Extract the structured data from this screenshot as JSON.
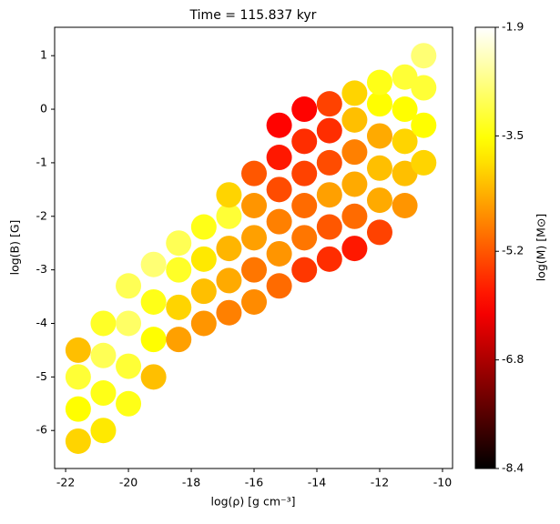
{
  "chart_data": {
    "type": "scatter",
    "title": "Time = 115.837 kyr",
    "x_label": "log(ρ) [g cm⁻³]",
    "y_label": "log(B) [G]",
    "colorbar_label": "log(M) [M⊙]",
    "colormap": "hot",
    "xlim": [
      -22.35,
      -9.68
    ],
    "xticks": [
      -22,
      -20,
      -18,
      -16,
      -14,
      -12,
      -10
    ],
    "ylim": [
      -6.71,
      1.53
    ],
    "yticks": [
      1,
      0,
      -1,
      -2,
      -3,
      -4,
      -5,
      -6
    ],
    "clim": [
      -8.4,
      -1.9
    ],
    "cticks": [
      -1.9,
      -3.5,
      -5.2,
      -6.8,
      -8.4
    ],
    "x": [
      -21.6,
      -21.6,
      -21.6,
      -21.6,
      -20.8,
      -20.8,
      -20.8,
      -20.8,
      -20.0,
      -20.0,
      -20.0,
      -20.0,
      -19.2,
      -19.2,
      -19.2,
      -19.2,
      -18.4,
      -18.4,
      -18.4,
      -18.4,
      -17.6,
      -17.6,
      -17.6,
      -17.6,
      -16.8,
      -16.8,
      -16.8,
      -16.8,
      -16.8,
      -16.0,
      -16.0,
      -16.0,
      -16.0,
      -16.0,
      -15.2,
      -15.2,
      -15.2,
      -15.2,
      -15.2,
      -15.2,
      -14.4,
      -14.4,
      -14.4,
      -14.4,
      -14.4,
      -14.4,
      -13.6,
      -13.6,
      -13.6,
      -13.6,
      -13.6,
      -13.6,
      -12.8,
      -12.8,
      -12.8,
      -12.8,
      -12.8,
      -12.8,
      -12.0,
      -12.0,
      -12.0,
      -12.0,
      -12.0,
      -12.0,
      -11.2,
      -11.2,
      -11.2,
      -11.2,
      -11.2,
      -10.6,
      -10.6,
      -10.6,
      -10.6
    ],
    "values": [
      -6.2,
      -5.6,
      -5.0,
      -4.5,
      -6.0,
      -5.3,
      -4.6,
      -4.0,
      -5.5,
      -4.8,
      -4.0,
      -3.3,
      -5.0,
      -4.3,
      -3.6,
      -2.9,
      -4.3,
      -3.7,
      -3.0,
      -2.5,
      -4.0,
      -3.4,
      -2.8,
      -2.2,
      -3.8,
      -3.2,
      -2.6,
      -2.0,
      -1.6,
      -3.6,
      -3.0,
      -2.4,
      -1.8,
      -1.2,
      -3.3,
      -2.7,
      -2.1,
      -1.5,
      -0.9,
      -0.3,
      -3.0,
      -2.4,
      -1.8,
      -1.2,
      -0.6,
      0.0,
      -2.8,
      -2.2,
      -1.6,
      -1.0,
      -0.4,
      0.1,
      -2.6,
      -2.0,
      -1.4,
      -0.8,
      -0.2,
      0.3,
      -2.3,
      -1.7,
      -1.1,
      -0.5,
      0.1,
      0.5,
      -1.8,
      -1.2,
      -0.6,
      0.0,
      0.6,
      -1.0,
      -0.3,
      0.4,
      1.0
    ],
    "log_mass": [
      -4.0,
      -3.6,
      -3.2,
      -4.2,
      -3.8,
      -3.4,
      -3.0,
      -3.3,
      -3.4,
      -3.2,
      -2.9,
      -3.0,
      -4.2,
      -3.6,
      -3.4,
      -2.8,
      -4.5,
      -4.0,
      -3.3,
      -3.0,
      -4.6,
      -4.2,
      -3.8,
      -3.4,
      -4.8,
      -4.4,
      -4.3,
      -3.2,
      -4.0,
      -4.7,
      -4.9,
      -4.5,
      -4.6,
      -5.2,
      -5.0,
      -4.6,
      -4.8,
      -5.3,
      -5.8,
      -6.0,
      -5.5,
      -4.9,
      -5.0,
      -5.4,
      -5.6,
      -6.0,
      -5.6,
      -5.2,
      -4.5,
      -5.3,
      -5.6,
      -5.4,
      -5.8,
      -5.0,
      -4.4,
      -4.8,
      -4.2,
      -4.0,
      -5.4,
      -4.4,
      -4.2,
      -4.4,
      -3.6,
      -3.4,
      -4.6,
      -4.2,
      -4.0,
      -3.6,
      -3.2,
      -4.0,
      -3.6,
      -3.2,
      -2.8
    ]
  }
}
